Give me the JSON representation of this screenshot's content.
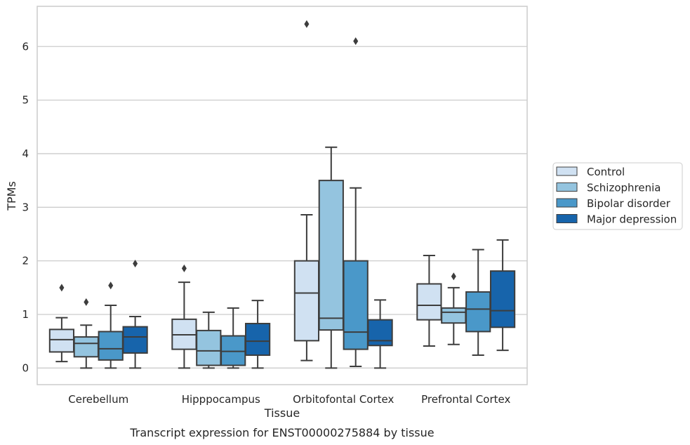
{
  "chart_data": {
    "type": "box",
    "xlabel": "Tissue",
    "ylabel": "TPMs",
    "caption": "Transcript expression for ENST00000275884 by tissue",
    "categories": [
      "Cerebellum",
      "Hipppocampus",
      "Orbitofontal Cortex",
      "Prefrontal Cortex"
    ],
    "ylim": [
      -0.31,
      6.75
    ],
    "yticks": [
      0,
      1,
      2,
      3,
      4,
      5,
      6
    ],
    "grid": true,
    "legend_position": "right",
    "series": [
      {
        "name": "Control",
        "color": "#d0e1f2",
        "boxes": [
          {
            "whisker_low": 0.12,
            "q1": 0.3,
            "median": 0.53,
            "q3": 0.72,
            "whisker_high": 0.94,
            "outliers": [
              1.5
            ]
          },
          {
            "whisker_low": 0.0,
            "q1": 0.35,
            "median": 0.62,
            "q3": 0.91,
            "whisker_high": 1.6,
            "outliers": [
              1.86
            ]
          },
          {
            "whisker_low": 0.14,
            "q1": 0.51,
            "median": 1.4,
            "q3": 2.0,
            "whisker_high": 2.86,
            "outliers": [
              6.42
            ]
          },
          {
            "whisker_low": 0.41,
            "q1": 0.9,
            "median": 1.17,
            "q3": 1.57,
            "whisker_high": 2.1,
            "outliers": []
          }
        ]
      },
      {
        "name": "Schizophrenia",
        "color": "#94c4df",
        "boxes": [
          {
            "whisker_low": 0.0,
            "q1": 0.21,
            "median": 0.46,
            "q3": 0.58,
            "whisker_high": 0.8,
            "outliers": [
              1.23
            ]
          },
          {
            "whisker_low": 0.0,
            "q1": 0.05,
            "median": 0.32,
            "q3": 0.7,
            "whisker_high": 1.04,
            "outliers": []
          },
          {
            "whisker_low": 0.0,
            "q1": 0.71,
            "median": 0.93,
            "q3": 3.5,
            "whisker_high": 4.12,
            "outliers": []
          },
          {
            "whisker_low": 0.44,
            "q1": 0.84,
            "median": 1.04,
            "q3": 1.12,
            "whisker_high": 1.5,
            "outliers": [
              1.71
            ]
          }
        ]
      },
      {
        "name": "Bipolar disorder",
        "color": "#4a98c9",
        "boxes": [
          {
            "whisker_low": 0.0,
            "q1": 0.15,
            "median": 0.36,
            "q3": 0.68,
            "whisker_high": 1.17,
            "outliers": [
              1.54
            ]
          },
          {
            "whisker_low": 0.0,
            "q1": 0.05,
            "median": 0.31,
            "q3": 0.6,
            "whisker_high": 1.12,
            "outliers": []
          },
          {
            "whisker_low": 0.03,
            "q1": 0.35,
            "median": 0.67,
            "q3": 2.0,
            "whisker_high": 3.36,
            "outliers": [
              6.1
            ]
          },
          {
            "whisker_low": 0.24,
            "q1": 0.68,
            "median": 1.1,
            "q3": 1.42,
            "whisker_high": 2.21,
            "outliers": []
          }
        ]
      },
      {
        "name": "Major depression",
        "color": "#1764ab",
        "boxes": [
          {
            "whisker_low": 0.0,
            "q1": 0.28,
            "median": 0.58,
            "q3": 0.77,
            "whisker_high": 0.96,
            "outliers": [
              1.95
            ]
          },
          {
            "whisker_low": 0.0,
            "q1": 0.24,
            "median": 0.5,
            "q3": 0.83,
            "whisker_high": 1.26,
            "outliers": []
          },
          {
            "whisker_low": 0.0,
            "q1": 0.42,
            "median": 0.51,
            "q3": 0.9,
            "whisker_high": 1.27,
            "outliers": []
          },
          {
            "whisker_low": 0.33,
            "q1": 0.76,
            "median": 1.07,
            "q3": 1.81,
            "whisker_high": 2.39,
            "outliers": []
          }
        ]
      }
    ],
    "colors": {
      "grid": "#cccccc",
      "frame": "#cccccc",
      "box_edge": "#3d3d3d"
    }
  }
}
